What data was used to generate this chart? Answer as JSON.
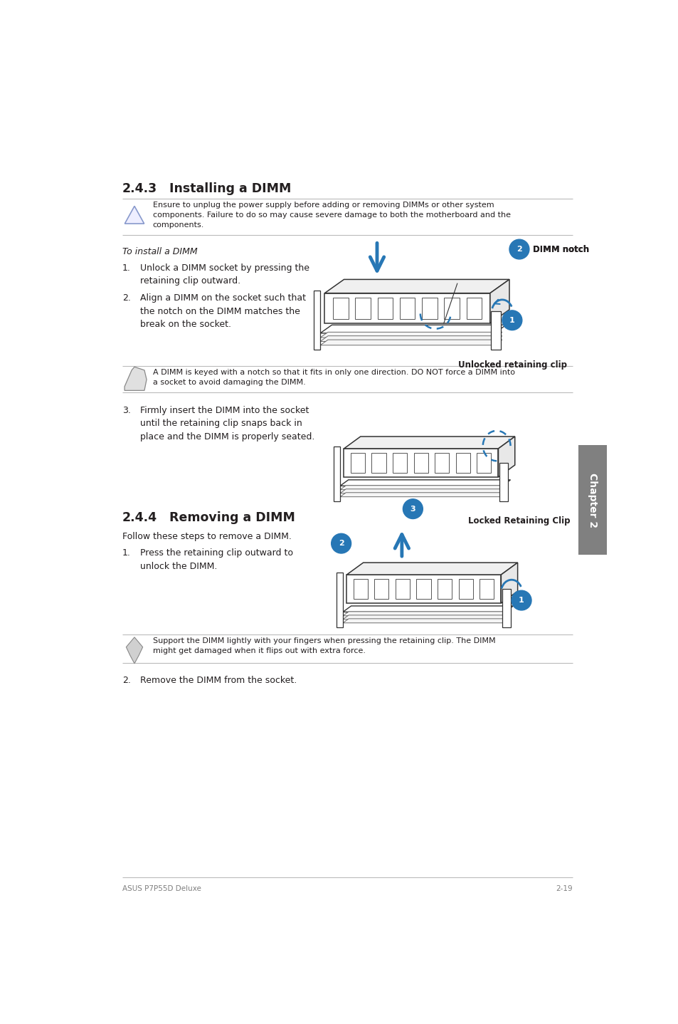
{
  "bg_color": "#ffffff",
  "page_width": 9.54,
  "page_height": 14.38,
  "text_color": "#231f20",
  "gray_color": "#808080",
  "blue_color": "#2777b5",
  "line_color": "#cccccc",
  "section_243_number": "2.4.3",
  "section_243_title": "Installing a DIMM",
  "section_244_number": "2.4.4",
  "section_244_title": "Removing a DIMM",
  "warning_text": "Ensure to unplug the power supply before adding or removing DIMMs or other system\ncomponents. Failure to do so may cause severe damage to both the motherboard and the\ncomponents.",
  "note1_text": "A DIMM is keyed with a notch so that it fits in only one direction. DO NOT force a DIMM into\na socket to avoid damaging the DIMM.",
  "note2_text": "Support the DIMM lightly with your fingers when pressing the retaining clip. The DIMM\nmight get damaged when it flips out with extra force.",
  "install_intro": "To install a DIMM",
  "install_step1": "Unlock a DIMM socket by pressing the\nretaining clip outward.",
  "install_step2": "Align a DIMM on the socket such that\nthe notch on the DIMM matches the\nbreak on the socket.",
  "install_step3": "Firmly insert the DIMM into the socket\nuntil the retaining clip snaps back in\nplace and the DIMM is properly seated.",
  "remove_intro": "Follow these steps to remove a DIMM.",
  "remove_step1": "Press the retaining clip outward to\nunlock the DIMM.",
  "remove_step2": "Remove the DIMM from the socket.",
  "label_unlocked": "Unlocked retaining clip",
  "label_locked": "Locked Retaining Clip",
  "label_dimm_notch": "DIMM notch",
  "footer_left": "ASUS P7P55D Deluxe",
  "footer_right": "2-19",
  "chapter_label": "Chapter 2",
  "chapter_tab_color": "#808080",
  "ml": 0.68,
  "mr": 8.85,
  "dpi": 100
}
